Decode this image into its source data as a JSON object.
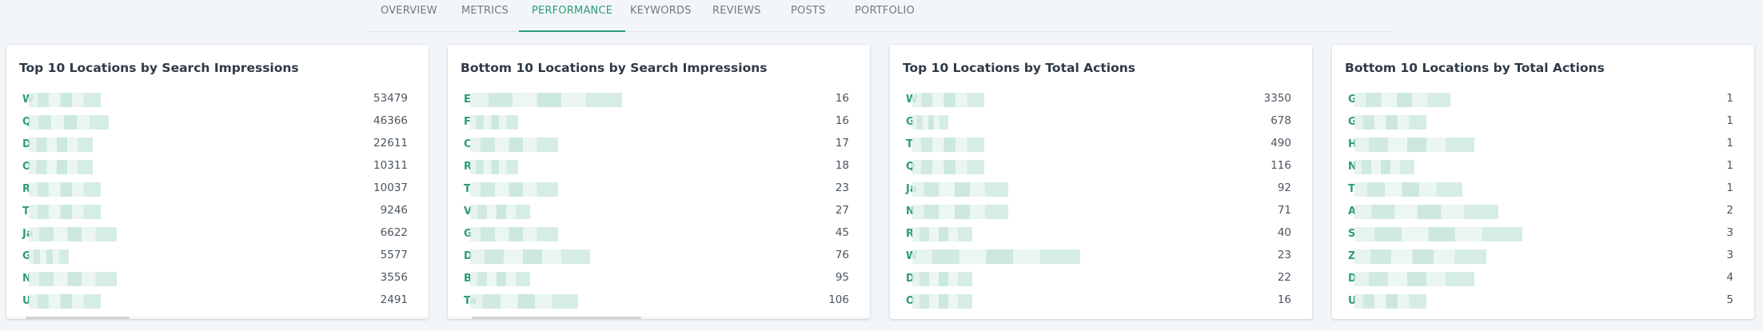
{
  "tabs": [
    {
      "label": "OVERVIEW"
    },
    {
      "label": "METRICS"
    },
    {
      "label": "PERFORMANCE",
      "active": true
    },
    {
      "label": "KEYWORDS"
    },
    {
      "label": "REVIEWS"
    },
    {
      "label": "POSTS"
    },
    {
      "label": "PORTFOLIO"
    }
  ],
  "accent_color": "#2a9d74",
  "cards": [
    {
      "title": "Top 10 Locations by Search Impressions",
      "rows": [
        {
          "initial": "W",
          "value": "53479"
        },
        {
          "initial": "Q",
          "value": "46366"
        },
        {
          "initial": "D",
          "value": "22611"
        },
        {
          "initial": "O",
          "value": "10311"
        },
        {
          "initial": "R",
          "value": "10037"
        },
        {
          "initial": "T",
          "value": "9246"
        },
        {
          "initial": "Ja",
          "value": "6622"
        },
        {
          "initial": "G",
          "value": "5577"
        },
        {
          "initial": "N",
          "value": "3556"
        },
        {
          "initial": "U",
          "value": "2491"
        }
      ]
    },
    {
      "title": "Bottom 10 Locations by Search Impressions",
      "rows": [
        {
          "initial": "E",
          "value": "16"
        },
        {
          "initial": "F",
          "value": "16"
        },
        {
          "initial": "C",
          "value": "17"
        },
        {
          "initial": "R",
          "value": "18"
        },
        {
          "initial": "T",
          "value": "23"
        },
        {
          "initial": "V",
          "value": "27"
        },
        {
          "initial": "G",
          "value": "45"
        },
        {
          "initial": "D",
          "value": "76"
        },
        {
          "initial": "B",
          "value": "95"
        },
        {
          "initial": "Ta",
          "value": "106"
        }
      ]
    },
    {
      "title": "Top 10 Locations by Total Actions",
      "rows": [
        {
          "initial": "W",
          "value": "3350"
        },
        {
          "initial": "G",
          "value": "678"
        },
        {
          "initial": "T",
          "value": "490"
        },
        {
          "initial": "Q",
          "value": "116"
        },
        {
          "initial": "Ja",
          "value": "92"
        },
        {
          "initial": "N",
          "value": "71"
        },
        {
          "initial": "R",
          "value": "40"
        },
        {
          "initial": "W",
          "value": "23"
        },
        {
          "initial": "D",
          "value": "22"
        },
        {
          "initial": "O",
          "value": "16"
        }
      ]
    },
    {
      "title": "Bottom 10 Locations by Total Actions",
      "rows": [
        {
          "initial": "G",
          "value": "1"
        },
        {
          "initial": "G",
          "value": "1"
        },
        {
          "initial": "H",
          "value": "1"
        },
        {
          "initial": "N",
          "value": "1"
        },
        {
          "initial": "T",
          "value": "1"
        },
        {
          "initial": "A",
          "value": "2"
        },
        {
          "initial": "S",
          "value": "3"
        },
        {
          "initial": "Z",
          "value": "3"
        },
        {
          "initial": "D",
          "value": "4"
        },
        {
          "initial": "U",
          "value": "5"
        }
      ]
    }
  ]
}
